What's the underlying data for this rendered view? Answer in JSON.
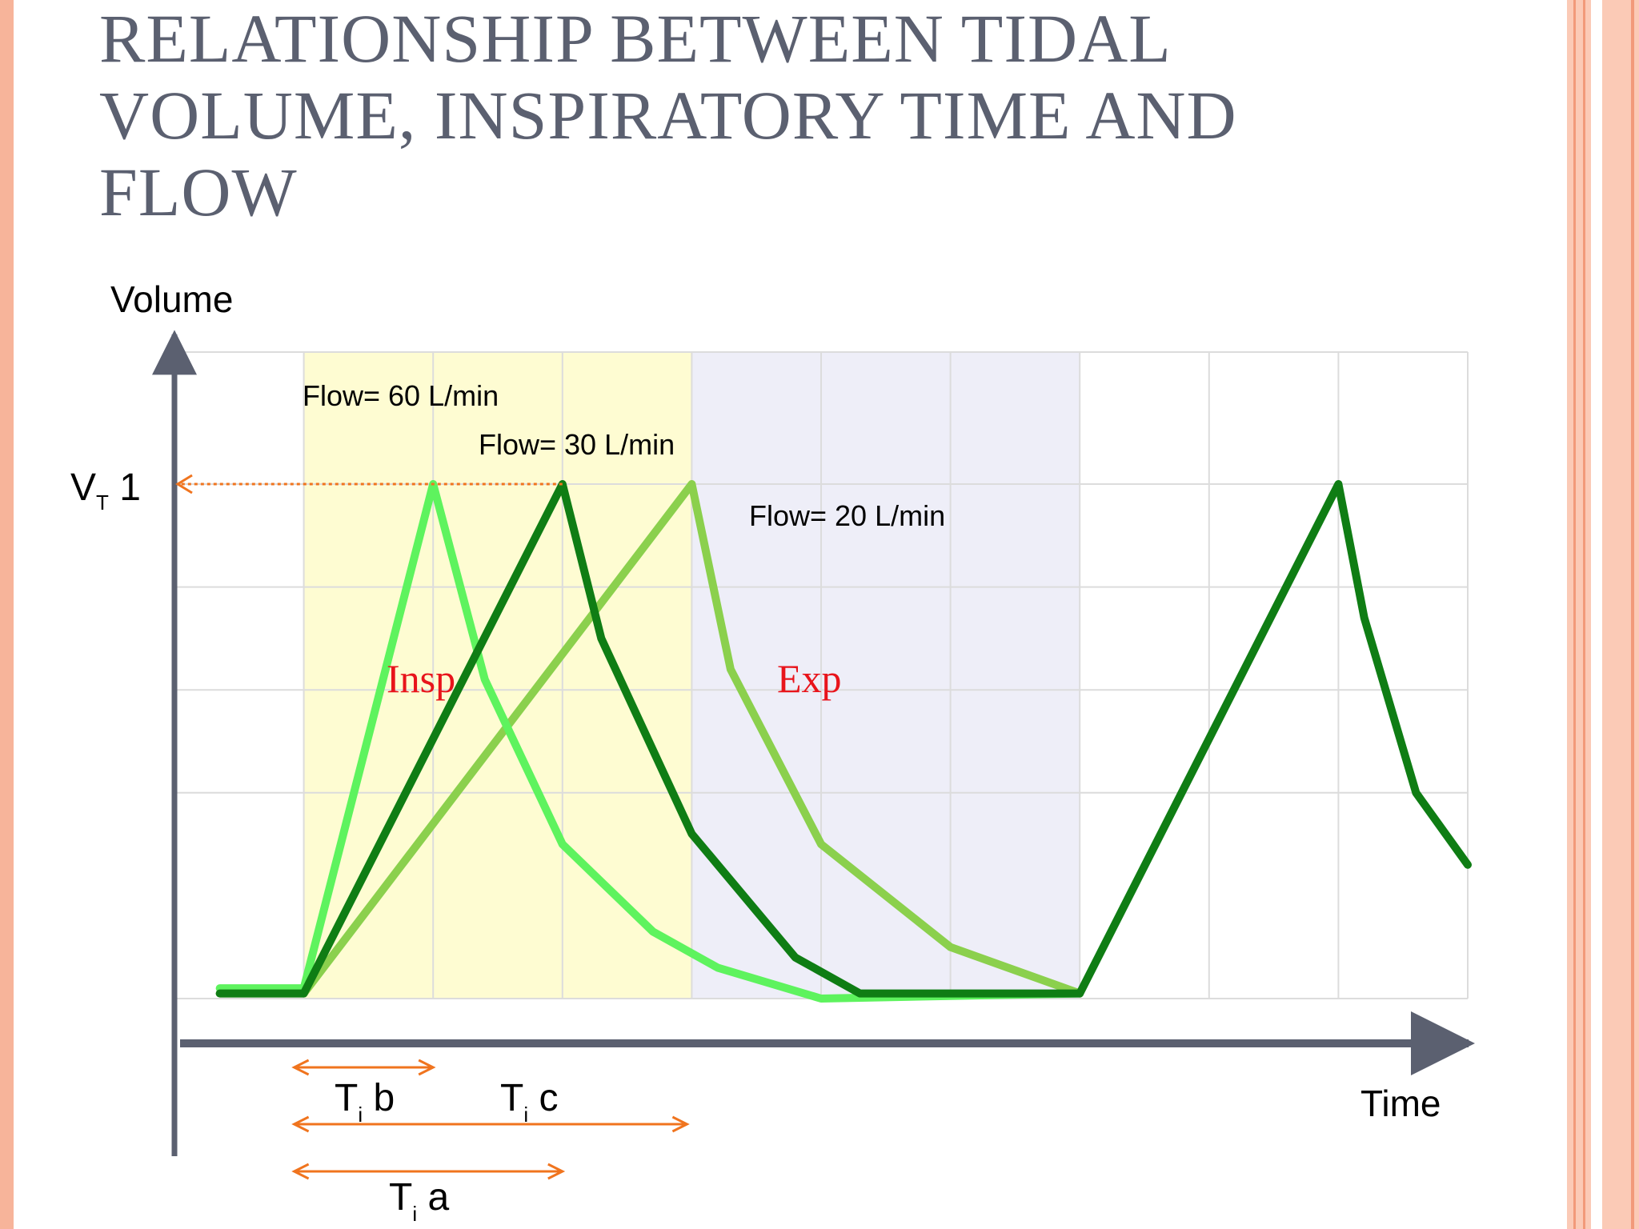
{
  "slide": {
    "title": "RELATIONSHIP BETWEEN TIDAL VOLUME, INSPIRATORY TIME AND FLOW"
  },
  "chart_data": {
    "type": "line",
    "title": "",
    "xlabel": "Time",
    "ylabel": "Volume",
    "y_tick_label": {
      "main": "V",
      "sub": "T",
      "suffix": " 1",
      "value": 1
    },
    "xlim": [
      0,
      10
    ],
    "ylim": [
      0,
      1
    ],
    "grid": true,
    "shaded_regions": [
      {
        "label": "Insp",
        "x_start": 1,
        "x_end": 4,
        "color": "#fefcd2"
      },
      {
        "label": "Exp",
        "x_start": 4,
        "x_end": 7,
        "color": "#eeeef8"
      }
    ],
    "region_label_color": "#e8141b",
    "series": [
      {
        "name": "Flow= 60 L/min",
        "color": "#5ef35e",
        "x": [
          0.35,
          1,
          2,
          2.4,
          3,
          3.7,
          4.2,
          5,
          7
        ],
        "y": [
          0.02,
          0.02,
          1,
          0.62,
          0.3,
          0.13,
          0.06,
          0,
          0.01
        ]
      },
      {
        "name": "Flow= 30 L/min",
        "color": "#0f7d14",
        "x": [
          0.35,
          1,
          3,
          3.3,
          4,
          4.8,
          5.3,
          7,
          9,
          9.2,
          9.6,
          10
        ],
        "y": [
          0.01,
          0.01,
          1,
          0.7,
          0.32,
          0.08,
          0.01,
          0.01,
          1,
          0.74,
          0.4,
          0.26
        ]
      },
      {
        "name": "Flow= 20 L/min",
        "color": "#8bd04d",
        "x": [
          0.35,
          1,
          4,
          4.3,
          5,
          6,
          7
        ],
        "y": [
          0.01,
          0.01,
          1,
          0.64,
          0.3,
          0.1,
          0.01
        ]
      }
    ],
    "vt_marker": {
      "x": 3,
      "y": 1,
      "color": "#f0741e"
    },
    "annotations": [
      {
        "id": "ti_b",
        "label_main": "T",
        "label_sub": "i",
        "label_suffix": " b",
        "x_start": 1,
        "x_end": 2
      },
      {
        "id": "ti_c",
        "label_main": "T",
        "label_sub": "i",
        "label_suffix": " c",
        "x_start": 1,
        "x_end": 4
      },
      {
        "id": "ti_a",
        "label_main": "T",
        "label_sub": "i",
        "label_suffix": " a",
        "x_start": 1,
        "x_end": 3
      }
    ],
    "annotation_color": "#f0741e"
  }
}
